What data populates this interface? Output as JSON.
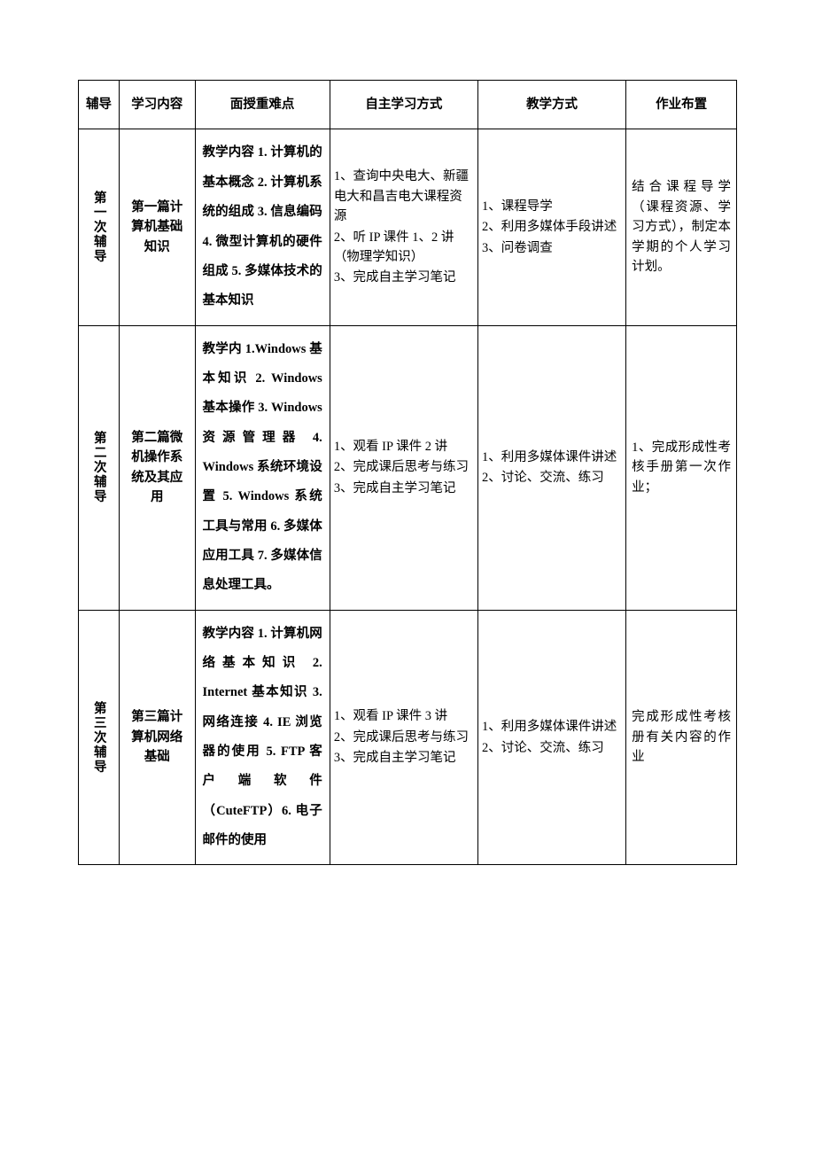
{
  "table": {
    "border_color": "#000000",
    "background_color": "#ffffff",
    "font_family": "SimSun",
    "header_fontsize": 14.5,
    "body_fontsize": 14.5,
    "columns": [
      {
        "key": "session",
        "label": "辅导",
        "width_pct": 6.2
      },
      {
        "key": "content",
        "label": "学习内容",
        "width_pct": 11.5
      },
      {
        "key": "keypoints",
        "label": "面授重难点",
        "width_pct": 20.5
      },
      {
        "key": "selfstudy",
        "label": "自主学习方式",
        "width_pct": 22.5
      },
      {
        "key": "teaching",
        "label": "教学方式",
        "width_pct": 22.5
      },
      {
        "key": "homework",
        "label": "作业布置",
        "width_pct": 16.8
      }
    ],
    "rows": [
      {
        "session": "第一次辅导",
        "content": "第一篇计算机基础知识",
        "keypoints": "教学内容 1. 计算机的基本概念 2. 计算机系统的组成 3. 信息编码 4. 微型计算机的硬件组成 5. 多媒体技术的基本知识",
        "selfstudy": [
          "1、查询中央电大、新疆电大和昌吉电大课程资源",
          "2、听 IP 课件 1、2 讲（物理学知识）",
          "3、完成自主学习笔记"
        ],
        "teaching": [
          "1、课程导学",
          "2、利用多媒体手段讲述",
          "3、问卷调查"
        ],
        "homework": "结合课程导学（课程资源、学习方式），制定本学期的个人学习计划。"
      },
      {
        "session": "第二次辅导",
        "content": "第二篇微机操作系统及其应用",
        "keypoints": "教学内 1.Windows 基本知识 2. Windows 基本操作 3. Windows 资源管理器 4. Windows 系统环境设置 5. Windows 系统工具与常用 6. 多媒体应用工具 7. 多媒体信息处理工具。",
        "selfstudy": [
          "1、观看 IP 课件 2 讲",
          "2、完成课后思考与练习",
          "3、完成自主学习笔记"
        ],
        "teaching": [
          "1、利用多媒体课件讲述",
          "2、讨论、交流、练习"
        ],
        "homework": "1、完成形成性考核手册第一次作业；"
      },
      {
        "session": "第三次辅导",
        "content": "第三篇计算机网络基础",
        "keypoints": "教学内容 1. 计算机网络基本知识 2. Internet 基本知识 3. 网络连接 4. IE 浏览器的使用 5. FTP 客户端软件（CuteFTP）6. 电子邮件的使用",
        "selfstudy": [
          "1、观看 IP 课件 3 讲",
          "2、完成课后思考与练习",
          "3、完成自主学习笔记"
        ],
        "teaching": [
          "1、利用多媒体课件讲述",
          "2、讨论、交流、练习"
        ],
        "homework": "完成形成性考核册有关内容的作业"
      }
    ]
  }
}
